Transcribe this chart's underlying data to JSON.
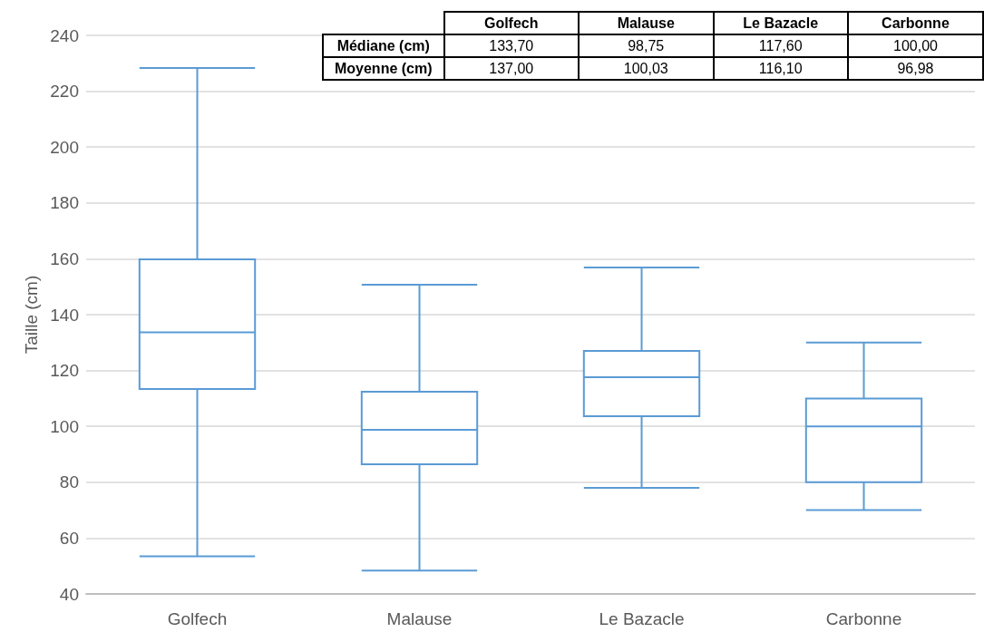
{
  "chart_data": {
    "type": "box",
    "ylabel": "Taille (cm)",
    "categories": [
      "Golfech",
      "Malause",
      "Le Bazacle",
      "Carbonne"
    ],
    "boxes": [
      {
        "low": 53.5,
        "q1": 113.4,
        "median": 133.7,
        "q3": 159.8,
        "high": 228.3
      },
      {
        "low": 48.4,
        "q1": 86.4,
        "median": 98.75,
        "q3": 112.4,
        "high": 150.7
      },
      {
        "low": 78,
        "q1": 103.6,
        "median": 117.6,
        "q3": 127,
        "high": 156.9
      },
      {
        "low": 70,
        "q1": 80,
        "median": 100,
        "q3": 110,
        "high": 130
      }
    ],
    "color": "#5b9bd5",
    "ylim": [
      40,
      240
    ],
    "yticks": [
      40,
      60,
      80,
      100,
      120,
      140,
      160,
      180,
      200,
      220,
      240
    ],
    "grid": "y",
    "annotations": [
      "Médiane (cm)",
      "133,70",
      "98,75",
      "117,60",
      "100,00",
      "Moyenne (cm)",
      "137,00",
      "100,03",
      "116,10",
      "96,98"
    ]
  }
}
